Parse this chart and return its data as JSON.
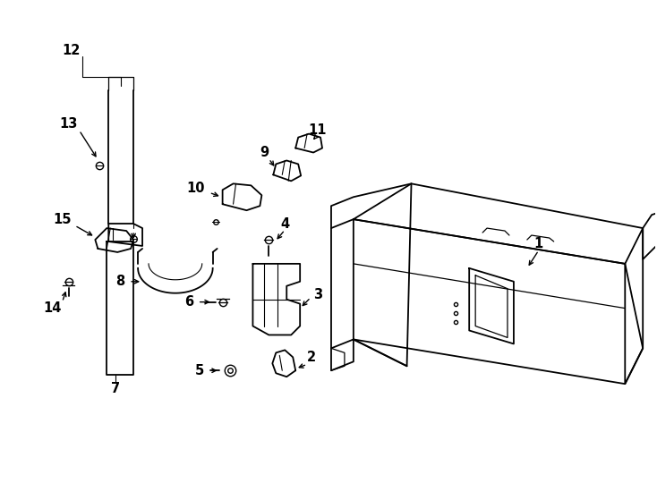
{
  "bg_color": "#ffffff",
  "line_color": "#000000",
  "lw": 1.3,
  "label_fontsize": 10.5,
  "figsize": [
    7.34,
    5.4
  ],
  "dpi": 100
}
